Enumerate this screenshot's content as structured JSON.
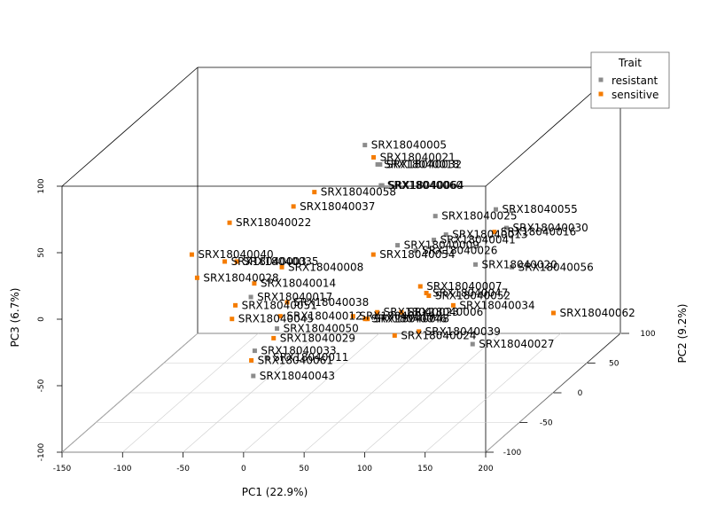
{
  "chart_data": {
    "type": "scatter",
    "subtype": "3d-scatter",
    "title": "",
    "xlabel": "PC1 (22.9%)",
    "ylabel": "PC2 (9.2%)",
    "zlabel": "PC3 (6.7%)",
    "xlim": [
      -150,
      200
    ],
    "ylim": [
      -100,
      100
    ],
    "zlim": [
      -100,
      100
    ],
    "x_ticks": [
      "-150",
      "-100",
      "-50",
      "0",
      "50",
      "100",
      "150",
      "200"
    ],
    "y_ticks": [
      "-100",
      "-50",
      "0",
      "50",
      "100"
    ],
    "z_ticks": [
      "-100",
      "-50",
      "0",
      "50",
      "100"
    ],
    "grid": "floor",
    "legend": {
      "title": "Trait",
      "placement": "top-right",
      "entries": [
        {
          "label": "resistant",
          "color": "#8c8c8c"
        },
        {
          "label": "sensitive",
          "color": "#f57c00"
        }
      ]
    },
    "points": [
      {
        "label": "SRX18040005",
        "trait": "resistant",
        "x": 5,
        "y": 70,
        "z": 55
      },
      {
        "label": "SRX18040021",
        "trait": "sensitive",
        "x": 15,
        "y": 65,
        "z": 48
      },
      {
        "label": "SRX18040018",
        "trait": "resistant",
        "x": 20,
        "y": 62,
        "z": 44
      },
      {
        "label": "SRX18040032",
        "trait": "resistant",
        "x": 22,
        "y": 62,
        "z": 44
      },
      {
        "label": "SRX18040060",
        "trait": "resistant",
        "x": 25,
        "y": 58,
        "z": 30
      },
      {
        "label": "SRX18040064",
        "trait": "resistant",
        "x": 26,
        "y": 58,
        "z": 30
      },
      {
        "label": "SRX18040058",
        "trait": "sensitive",
        "x": -30,
        "y": 58,
        "z": 25
      },
      {
        "label": "SRX18040037",
        "trait": "sensitive",
        "x": -40,
        "y": 45,
        "z": 20
      },
      {
        "label": "SRX18040055",
        "trait": "resistant",
        "x": 130,
        "y": 40,
        "z": 20
      },
      {
        "label": "SRX18040025",
        "trait": "resistant",
        "x": 80,
        "y": 40,
        "z": 15
      },
      {
        "label": "SRX18040022",
        "trait": "sensitive",
        "x": -90,
        "y": 40,
        "z": 10
      },
      {
        "label": "SRX18040030",
        "trait": "resistant",
        "x": 150,
        "y": 20,
        "z": 15
      },
      {
        "label": "SRX18040016",
        "trait": "sensitive",
        "x": 140,
        "y": 20,
        "z": 12
      },
      {
        "label": "SRX18040013",
        "trait": "resistant",
        "x": 100,
        "y": 20,
        "z": 10
      },
      {
        "label": "SRX18040041",
        "trait": "resistant",
        "x": 90,
        "y": 20,
        "z": 6
      },
      {
        "label": "SRX18040009",
        "trait": "resistant",
        "x": 60,
        "y": 20,
        "z": 2
      },
      {
        "label": "SRX18040026",
        "trait": "resistant",
        "x": 75,
        "y": 20,
        "z": -2
      },
      {
        "label": "SRX18040054",
        "trait": "sensitive",
        "x": 40,
        "y": 20,
        "z": -5
      },
      {
        "label": "SRX18040056",
        "trait": "resistant",
        "x": 160,
        "y": 10,
        "z": -10
      },
      {
        "label": "SRX18040020",
        "trait": "resistant",
        "x": 130,
        "y": 10,
        "z": -8
      },
      {
        "label": "SRX18040040",
        "trait": "sensitive",
        "x": -110,
        "y": 20,
        "z": -5
      },
      {
        "label": "SRX18040003",
        "trait": "sensitive",
        "x": -80,
        "y": 15,
        "z": -8
      },
      {
        "label": "SRX18040035",
        "trait": "sensitive",
        "x": -70,
        "y": 15,
        "z": -8
      },
      {
        "label": "SRX18040008",
        "trait": "sensitive",
        "x": -30,
        "y": 10,
        "z": -10
      },
      {
        "label": "SRX18040028",
        "trait": "sensitive",
        "x": -100,
        "y": 10,
        "z": -18
      },
      {
        "label": "SRX18040014",
        "trait": "sensitive",
        "x": -50,
        "y": 5,
        "z": -20
      },
      {
        "label": "SRX18040007",
        "trait": "sensitive",
        "x": 90,
        "y": 0,
        "z": -20
      },
      {
        "label": "SRX18040047",
        "trait": "sensitive",
        "x": 95,
        "y": 0,
        "z": -25
      },
      {
        "label": "SRX18040052",
        "trait": "sensitive",
        "x": 97,
        "y": 0,
        "z": -27
      },
      {
        "label": "SRX18040017",
        "trait": "resistant",
        "x": -50,
        "y": 0,
        "z": -28
      },
      {
        "label": "SRX18040038",
        "trait": "sensitive",
        "x": -20,
        "y": 0,
        "z": -32
      },
      {
        "label": "SRX18040051",
        "trait": "sensitive",
        "x": -60,
        "y": -5,
        "z": -32
      },
      {
        "label": "SRX18040034",
        "trait": "sensitive",
        "x": 120,
        "y": -5,
        "z": -32
      },
      {
        "label": "SRX18040006",
        "trait": "sensitive",
        "x": 80,
        "y": -10,
        "z": -35
      },
      {
        "label": "SRX18040023",
        "trait": "sensitive",
        "x": 60,
        "y": -10,
        "z": -35
      },
      {
        "label": "SRX18040019",
        "trait": "sensitive",
        "x": 40,
        "y": -10,
        "z": -38
      },
      {
        "label": "SRX18040012",
        "trait": "sensitive",
        "x": -20,
        "y": -10,
        "z": -38
      },
      {
        "label": "SRX18040046",
        "trait": "sensitive",
        "x": 50,
        "y": -10,
        "z": -40
      },
      {
        "label": "SRX18040048",
        "trait": "sensitive",
        "x": 52,
        "y": -10,
        "z": -40
      },
      {
        "label": "SRX18040045",
        "trait": "sensitive",
        "x": -60,
        "y": -10,
        "z": -40
      },
      {
        "label": "SRX18040050",
        "trait": "resistant",
        "x": -20,
        "y": -15,
        "z": -45
      },
      {
        "label": "SRX18040039",
        "trait": "sensitive",
        "x": 100,
        "y": -20,
        "z": -45
      },
      {
        "label": "SRX18040024",
        "trait": "sensitive",
        "x": 80,
        "y": -20,
        "z": -48
      },
      {
        "label": "SRX18040029",
        "trait": "sensitive",
        "x": -20,
        "y": -20,
        "z": -50
      },
      {
        "label": "SRX18040027",
        "trait": "resistant",
        "x": 150,
        "y": -30,
        "z": -50
      },
      {
        "label": "SRX18040033",
        "trait": "resistant",
        "x": -30,
        "y": -30,
        "z": -55
      },
      {
        "label": "SRX18040011",
        "trait": "resistant",
        "x": -20,
        "y": -30,
        "z": -60
      },
      {
        "label": "SRX18040061",
        "trait": "sensitive",
        "x": -30,
        "y": -35,
        "z": -60
      },
      {
        "label": "SRX18040062",
        "trait": "sensitive",
        "x": 200,
        "y": 0,
        "z": -40
      },
      {
        "label": "SRX18040043",
        "trait": "resistant",
        "x": -20,
        "y": -50,
        "z": -65
      }
    ]
  }
}
